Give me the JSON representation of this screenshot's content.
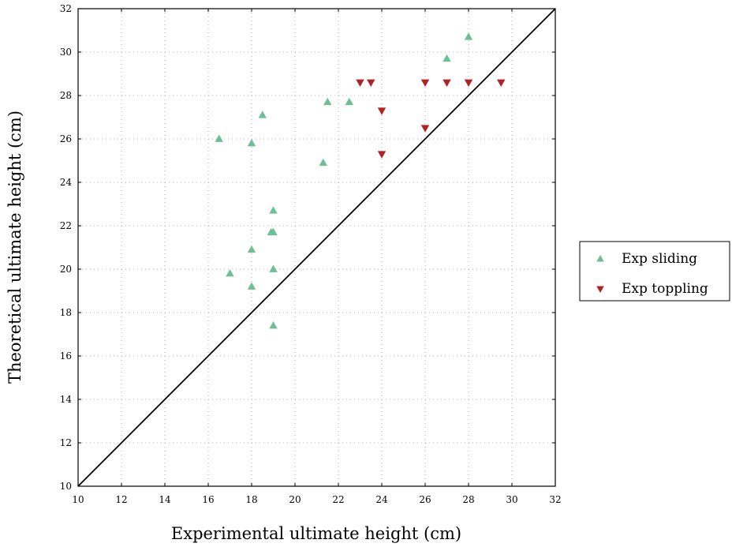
{
  "chart_data": {
    "type": "scatter",
    "title": "",
    "xlabel": "Experimental ultimate height (cm)",
    "ylabel": "Theoretical ultimate height (cm)",
    "xlim": [
      10,
      32
    ],
    "ylim": [
      10,
      32
    ],
    "xticks": [
      10,
      12,
      14,
      16,
      18,
      20,
      22,
      24,
      26,
      28,
      30,
      32
    ],
    "yticks": [
      10,
      12,
      14,
      16,
      18,
      20,
      22,
      24,
      26,
      28,
      30,
      32
    ],
    "grid": true,
    "legend_position": "right",
    "reference_line": {
      "x": [
        10,
        32
      ],
      "y": [
        10,
        32
      ],
      "color": "#000000"
    },
    "series": [
      {
        "name": "Exp sliding",
        "marker": "triangle-up",
        "color": "#6fbf96",
        "points": [
          {
            "x": 16.5,
            "y": 26.0
          },
          {
            "x": 17.0,
            "y": 19.8
          },
          {
            "x": 18.0,
            "y": 25.8
          },
          {
            "x": 18.0,
            "y": 20.9
          },
          {
            "x": 18.0,
            "y": 19.2
          },
          {
            "x": 18.5,
            "y": 27.1
          },
          {
            "x": 18.9,
            "y": 21.7
          },
          {
            "x": 19.0,
            "y": 21.7
          },
          {
            "x": 19.0,
            "y": 22.7
          },
          {
            "x": 19.0,
            "y": 20.0
          },
          {
            "x": 19.0,
            "y": 17.4
          },
          {
            "x": 21.3,
            "y": 24.9
          },
          {
            "x": 21.5,
            "y": 27.7
          },
          {
            "x": 22.5,
            "y": 27.7
          },
          {
            "x": 27.0,
            "y": 29.7
          },
          {
            "x": 28.0,
            "y": 30.7
          }
        ]
      },
      {
        "name": "Exp toppling",
        "marker": "triangle-down",
        "color": "#b22222",
        "points": [
          {
            "x": 23.0,
            "y": 28.6
          },
          {
            "x": 23.5,
            "y": 28.6
          },
          {
            "x": 24.0,
            "y": 27.3
          },
          {
            "x": 24.0,
            "y": 25.3
          },
          {
            "x": 26.0,
            "y": 28.6
          },
          {
            "x": 26.0,
            "y": 26.5
          },
          {
            "x": 27.0,
            "y": 28.6
          },
          {
            "x": 28.0,
            "y": 28.6
          },
          {
            "x": 29.5,
            "y": 28.6
          }
        ]
      }
    ]
  }
}
